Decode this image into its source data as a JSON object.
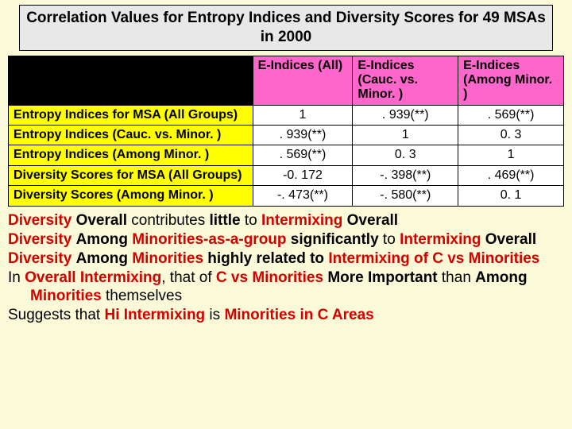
{
  "title": "Correlation Values for Entropy Indices and Diversity Scores  for 49 MSAs in 2000",
  "table": {
    "columns": [
      "E-Indices (All)",
      "E-Indices (Cauc. vs. Minor. )",
      "E-Indices (Among Minor. )"
    ],
    "rows": [
      {
        "label": "Entropy Indices for MSA (All Groups)",
        "cells": [
          "1",
          ". 939(**)",
          ". 569(**)"
        ]
      },
      {
        "label": "Entropy Indices (Cauc. vs. Minor. )",
        "cells": [
          ". 939(**)",
          "1",
          "0. 3"
        ]
      },
      {
        "label": "Entropy Indices (Among Minor. )",
        "cells": [
          ". 569(**)",
          "0. 3",
          "1"
        ]
      },
      {
        "label": "Diversity Scores for MSA (All Groups)",
        "cells": [
          "-0. 172",
          "-. 398(**)",
          ". 469(**)"
        ]
      },
      {
        "label": "Diversity Scores (Among Minor. )",
        "cells": [
          "-. 473(**)",
          "-. 580(**)",
          "0. 1"
        ]
      }
    ]
  },
  "findings": {
    "f1": {
      "w1": "Overall",
      "w2": "little",
      "w3": "Overall"
    },
    "f2": {
      "w1": "Among",
      "w2": "Minorities-as-a-group",
      "w3": "significantly",
      "w4": "Overall"
    },
    "f3": {
      "w1": "Among",
      "w2": "Minorities",
      "w3": "highly related to",
      "w4": "of C vs Minorities"
    },
    "f4": {
      "w1": "Overall Intermixing",
      "w2": "C vs Minorities",
      "w3": "More Important",
      "w4": "Among",
      "w5": "Minorities"
    },
    "f5": {
      "w1": "Hi Intermixing",
      "w2": "Minorities in C Areas"
    }
  },
  "colors": {
    "page_bg": "#fafad8",
    "title_bg": "#e8e8e8",
    "header_bg": "#ff66cc",
    "rowhead_bg": "#ffff00",
    "empty_bg": "#000000",
    "cell_bg": "#ffffff",
    "border": "#000000",
    "text": "#000000",
    "accent_red": "#d40000"
  }
}
